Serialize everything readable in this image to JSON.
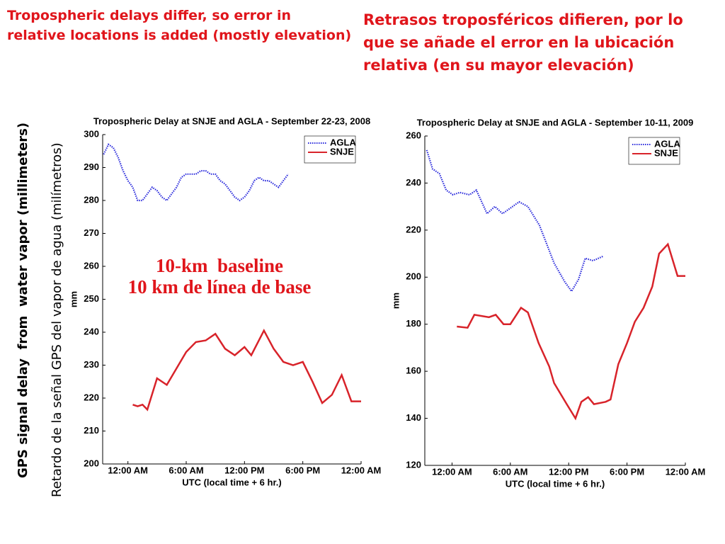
{
  "slide": {
    "title_en": "Tropospheric delays differ, so error in relative locations is added (mostly elevation)",
    "title_es": "Retrasos troposféricos difieren, por lo que se añade el error en la ubicación relativa (en su mayor elevación)",
    "ylabel_en": "GPS signal delay  from  water vapor (millimeters)",
    "ylabel_es": "Retardo de la señal GPS del vapor de agua (milímetros)",
    "annotation_en": "10-km  baseline",
    "annotation_es": "10 km de línea de base"
  },
  "chart_data": [
    {
      "type": "line",
      "title": "Tropospheric Delay at SNJE and AGLA - September 22-23, 2008",
      "xlabel": "UTC (local time + 6 hr.)",
      "ylabel": "mm",
      "legend": "upper right",
      "xlim": [
        -2.6,
        24
      ],
      "ylim": [
        200,
        300
      ],
      "xticks": [
        {
          "value": 0,
          "label": "12:00 AM"
        },
        {
          "value": 6,
          "label": "6:00 AM"
        },
        {
          "value": 12,
          "label": "12:00 PM"
        },
        {
          "value": 18,
          "label": "6:00 PM"
        },
        {
          "value": 24,
          "label": "12:00 AM"
        }
      ],
      "yticks": [
        200,
        210,
        220,
        230,
        240,
        250,
        260,
        270,
        280,
        290,
        300
      ],
      "series": [
        {
          "name": "AGLA",
          "color": "#2b2bdc",
          "style": "dotted",
          "x": [
            -2.5,
            -2,
            -1.5,
            -1,
            -0.5,
            0,
            0.5,
            1,
            1.5,
            2,
            2.5,
            3,
            3.5,
            4,
            4.5,
            5,
            5.5,
            6,
            6.5,
            7,
            7.5,
            8,
            8.5,
            9,
            9.5,
            10,
            10.5,
            11,
            11.5,
            12,
            12.5,
            13,
            13.5,
            14,
            14.5,
            15,
            15.5,
            16,
            16.5
          ],
          "values": [
            294,
            297,
            296,
            293,
            289,
            286,
            284,
            280,
            280,
            282,
            284,
            283,
            281,
            280,
            282,
            284,
            287,
            288,
            288,
            288,
            289,
            289,
            288,
            288,
            286,
            285,
            283,
            281,
            280,
            281,
            283,
            286,
            287,
            286,
            286,
            285,
            284,
            286,
            288
          ]
        },
        {
          "name": "SNJE",
          "color": "#d8232a",
          "style": "solid",
          "x": [
            0.5,
            1,
            1.5,
            2,
            3,
            4,
            5,
            6,
            7,
            8,
            9,
            10,
            11,
            12,
            12.7,
            14,
            15,
            16,
            17,
            18,
            19,
            20,
            21,
            22,
            23,
            24
          ],
          "values": [
            218,
            217.5,
            218,
            216.5,
            226,
            224,
            229,
            234,
            237,
            237.5,
            239.5,
            235,
            233,
            235.5,
            233,
            240.5,
            235,
            231,
            230,
            231,
            225,
            218.5,
            221,
            227,
            219,
            219
          ]
        }
      ]
    },
    {
      "type": "line",
      "title": "Tropospheric Delay at SNJE and AGLA - September 10-11, 2009",
      "xlabel": "UTC (local time + 6 hr.)",
      "ylabel": "mm",
      "legend": "upper right",
      "xlim": [
        -2.8,
        24
      ],
      "ylim": [
        120,
        260
      ],
      "xticks": [
        {
          "value": 0,
          "label": "12:00 AM"
        },
        {
          "value": 6,
          "label": "6:00 AM"
        },
        {
          "value": 12,
          "label": "12:00 PM"
        },
        {
          "value": 18,
          "label": "6:00 PM"
        },
        {
          "value": 24,
          "label": "12:00 AM"
        }
      ],
      "yticks": [
        120,
        140,
        160,
        180,
        200,
        220,
        240,
        260
      ],
      "series": [
        {
          "name": "AGLA",
          "color": "#2b2bdc",
          "style": "dotted",
          "x": [
            -2.6,
            -2,
            -1.3,
            -0.6,
            0.1,
            0.8,
            1.8,
            2.5,
            3.6,
            4.4,
            5.2,
            6.9,
            7.8,
            9,
            10.5,
            11.6,
            12.3,
            13,
            13.7,
            14.5,
            15.6
          ],
          "values": [
            254,
            246,
            244,
            237,
            235,
            236,
            235,
            237,
            227,
            230,
            227,
            232,
            230,
            222,
            206,
            198,
            194,
            199,
            208,
            207,
            209
          ]
        },
        {
          "name": "SNJE",
          "color": "#d8232a",
          "style": "solid",
          "x": [
            0.5,
            1.6,
            2.3,
            3.8,
            4.5,
            5.3,
            6,
            7.1,
            7.8,
            8.9,
            10,
            10.5,
            11.8,
            12.7,
            13.3,
            14,
            14.6,
            15.8,
            16.3,
            17.1,
            18,
            18.8,
            19.7,
            20.6,
            21.3,
            22.2,
            23.2,
            24
          ],
          "values": [
            179,
            178.5,
            184,
            183,
            184,
            180,
            180,
            187,
            185,
            172,
            162,
            155,
            146,
            140,
            147,
            149,
            146,
            147,
            148,
            163,
            172,
            181,
            187,
            196,
            210,
            214,
            200.5,
            200.5
          ]
        }
      ]
    }
  ]
}
